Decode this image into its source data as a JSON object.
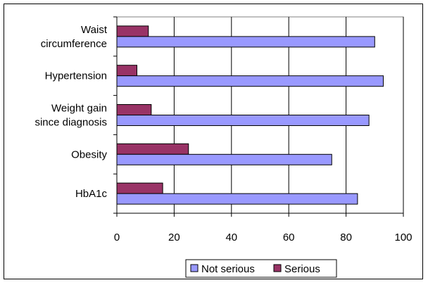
{
  "chart_data": {
    "type": "bar",
    "orientation": "horizontal",
    "categories": [
      [
        "Waist",
        "circumference"
      ],
      [
        "Hypertension"
      ],
      [
        "Weight gain",
        "since diagnosis"
      ],
      [
        "Obesity"
      ],
      [
        "HbA1c"
      ]
    ],
    "series": [
      {
        "name": "Not serious",
        "color": "#9999ff",
        "values": [
          90,
          93,
          88,
          75,
          84
        ]
      },
      {
        "name": "Serious",
        "color": "#993366",
        "values": [
          11,
          7,
          12,
          25,
          16
        ]
      }
    ],
    "xlim": [
      0,
      100
    ],
    "xticks": [
      "0",
      "20",
      "40",
      "60",
      "80",
      "100"
    ],
    "grid": "vertical",
    "legend_position": "bottom"
  }
}
